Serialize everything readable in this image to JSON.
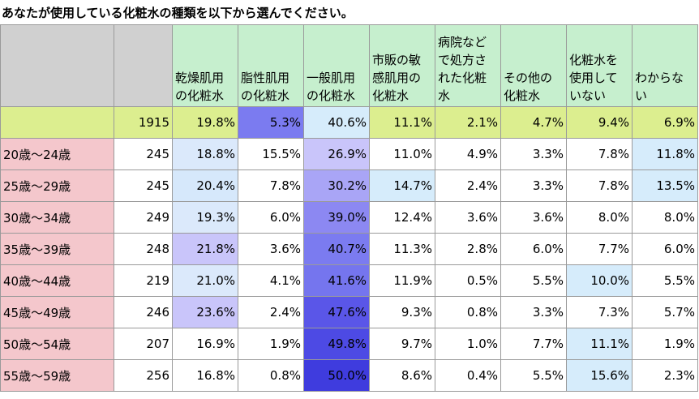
{
  "title": "あなたが使用している化粧水の種類を以下から選んでください。",
  "chart_data": {
    "type": "table",
    "columns": [
      "乾燥肌用の化粧水",
      "脂性肌用の化粧水",
      "一般肌用の化粧水",
      "市販の敏感肌用の化粧水",
      "病院などで処方された化粧水",
      "その他の化粧水",
      "化粧水を使用していない",
      "わからない"
    ],
    "total": {
      "label": "",
      "n": "1915",
      "values": [
        "19.8%",
        "5.3%",
        "40.6%",
        "11.1%",
        "2.1%",
        "4.7%",
        "9.4%",
        "6.9%"
      ]
    },
    "rows": [
      {
        "label": "20歳～24歳",
        "n": "245",
        "values": [
          "18.8%",
          "15.5%",
          "26.9%",
          "11.0%",
          "4.9%",
          "3.3%",
          "7.8%",
          "11.8%"
        ]
      },
      {
        "label": "25歳～29歳",
        "n": "245",
        "values": [
          "20.4%",
          "7.8%",
          "30.2%",
          "14.7%",
          "2.4%",
          "3.3%",
          "7.8%",
          "13.5%"
        ]
      },
      {
        "label": "30歳～34歳",
        "n": "249",
        "values": [
          "19.3%",
          "6.0%",
          "39.0%",
          "12.4%",
          "3.6%",
          "3.6%",
          "8.0%",
          "8.0%"
        ]
      },
      {
        "label": "35歳～39歳",
        "n": "248",
        "values": [
          "21.8%",
          "3.6%",
          "40.7%",
          "11.3%",
          "2.8%",
          "6.0%",
          "7.7%",
          "6.0%"
        ]
      },
      {
        "label": "40歳～44歳",
        "n": "219",
        "values": [
          "21.0%",
          "4.1%",
          "41.6%",
          "11.9%",
          "0.5%",
          "5.5%",
          "10.0%",
          "5.5%"
        ]
      },
      {
        "label": "45歳～49歳",
        "n": "246",
        "values": [
          "23.6%",
          "2.4%",
          "47.6%",
          "9.3%",
          "0.8%",
          "3.3%",
          "7.3%",
          "5.7%"
        ]
      },
      {
        "label": "50歳～54歳",
        "n": "207",
        "values": [
          "16.9%",
          "1.9%",
          "49.8%",
          "9.7%",
          "1.0%",
          "7.7%",
          "11.1%",
          "1.9%"
        ]
      },
      {
        "label": "55歳～59歳",
        "n": "256",
        "values": [
          "16.8%",
          "0.8%",
          "50.0%",
          "8.6%",
          "0.4%",
          "5.5%",
          "15.6%",
          "2.3%"
        ]
      }
    ],
    "cell_colors": {
      "total_row": [
        "#dcee8f",
        "#dcee8f",
        "#dcee8f",
        "#7b7bf0",
        "#d6ecfb",
        "#dcee8f",
        "#dcee8f",
        "#dcee8f",
        "#dcee8f",
        "#dcee8f"
      ],
      "rows": [
        [
          "#f4c7cc",
          "#ffffff",
          "#dbe9fb",
          "#ffffff",
          "#c9c5fa",
          "#ffffff",
          "#ffffff",
          "#ffffff",
          "#ffffff",
          "#d6ecfb"
        ],
        [
          "#f4c7cc",
          "#ffffff",
          "#d6e8fb",
          "#ffffff",
          "#a9a5f6",
          "#d6ecfb",
          "#ffffff",
          "#ffffff",
          "#ffffff",
          "#d6ecfb"
        ],
        [
          "#f4c7cc",
          "#ffffff",
          "#dbe9fb",
          "#ffffff",
          "#8c88f2",
          "#ffffff",
          "#ffffff",
          "#ffffff",
          "#ffffff",
          "#ffffff"
        ],
        [
          "#f4c7cc",
          "#ffffff",
          "#c9c5fa",
          "#ffffff",
          "#7b7bf0",
          "#ffffff",
          "#ffffff",
          "#ffffff",
          "#ffffff",
          "#ffffff"
        ],
        [
          "#f4c7cc",
          "#ffffff",
          "#dbe9fb",
          "#ffffff",
          "#7575ee",
          "#ffffff",
          "#ffffff",
          "#ffffff",
          "#d6ecfb",
          "#ffffff"
        ],
        [
          "#f4c7cc",
          "#ffffff",
          "#c9c5fa",
          "#ffffff",
          "#5a56e8",
          "#ffffff",
          "#ffffff",
          "#ffffff",
          "#ffffff",
          "#ffffff"
        ],
        [
          "#f4c7cc",
          "#ffffff",
          "#ffffff",
          "#ffffff",
          "#4d4ae4",
          "#ffffff",
          "#ffffff",
          "#ffffff",
          "#d6ecfb",
          "#ffffff"
        ],
        [
          "#f4c7cc",
          "#ffffff",
          "#ffffff",
          "#ffffff",
          "#3f3cde",
          "#ffffff",
          "#ffffff",
          "#ffffff",
          "#d6ecfb",
          "#ffffff"
        ]
      ]
    }
  }
}
